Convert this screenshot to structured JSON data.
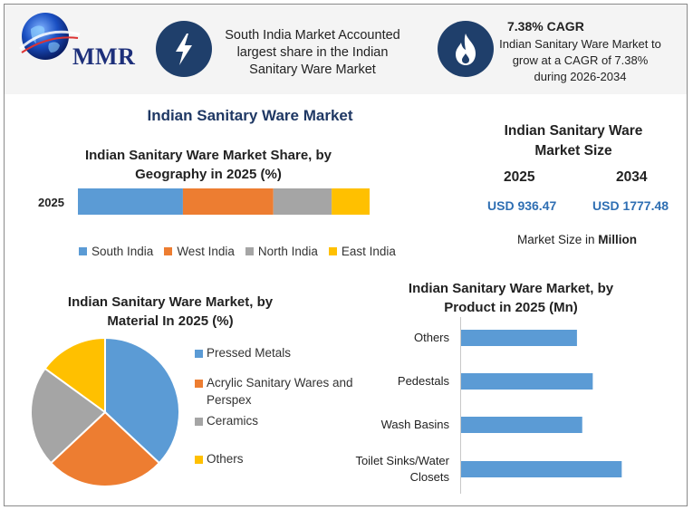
{
  "header": {
    "brand": "MMR",
    "info1": "South India Market Accounted largest share in the Indian Sanitary Ware Market",
    "cagr_title": "7.38% CAGR",
    "cagr_text": "Indian Sanitary Ware Market to grow at a CAGR of 7.38% during 2026-2034",
    "icon1": "lightning-bolt-icon",
    "icon2": "flame-icon",
    "colors": {
      "navy": "#1f3f6b",
      "title_blue": "#1f3864",
      "value_blue": "#2f6fb3"
    }
  },
  "main_title": "Indian Sanitary Ware Market",
  "market_size": {
    "title": "Indian Sanitary Ware Market Size",
    "years": [
      "2025",
      "2034"
    ],
    "values": [
      "USD 936.47",
      "USD 1777.48"
    ],
    "unit_prefix": "Market Size in",
    "unit": "Million"
  },
  "chart_data": [
    {
      "type": "bar",
      "stacked": true,
      "orientation": "horizontal",
      "title": "Indian Sanitary Ware Market Share, by Geography in 2025 (%)",
      "categories": [
        "2025"
      ],
      "series": [
        {
          "name": "South India",
          "values": [
            36
          ],
          "color": "#5b9bd5"
        },
        {
          "name": "West India",
          "values": [
            31
          ],
          "color": "#ed7d31"
        },
        {
          "name": "North India",
          "values": [
            20
          ],
          "color": "#a5a5a5"
        },
        {
          "name": "East India",
          "values": [
            13
          ],
          "color": "#ffc000"
        }
      ],
      "legend": "bottom"
    },
    {
      "type": "pie",
      "title": "Indian Sanitary Ware Market, by Material In 2025 (%)",
      "labels": [
        "Pressed Metals",
        "Acrylic Sanitary Wares and Perspex",
        "Ceramics",
        "Others"
      ],
      "values": [
        37,
        26,
        22,
        15
      ],
      "colors": [
        "#5b9bd5",
        "#ed7d31",
        "#a5a5a5",
        "#ffc000"
      ],
      "legend": "right"
    },
    {
      "type": "bar",
      "orientation": "horizontal",
      "title": "Indian Sanitary Ware Market, by Product in 2025 (Mn)",
      "categories": [
        "Others",
        "Pedestals",
        "Wash Basins",
        "Toilet Sinks/Water Closets"
      ],
      "values": [
        220,
        250,
        230,
        305
      ],
      "xlim": [
        0,
        430
      ],
      "color": "#5b9bd5"
    }
  ]
}
